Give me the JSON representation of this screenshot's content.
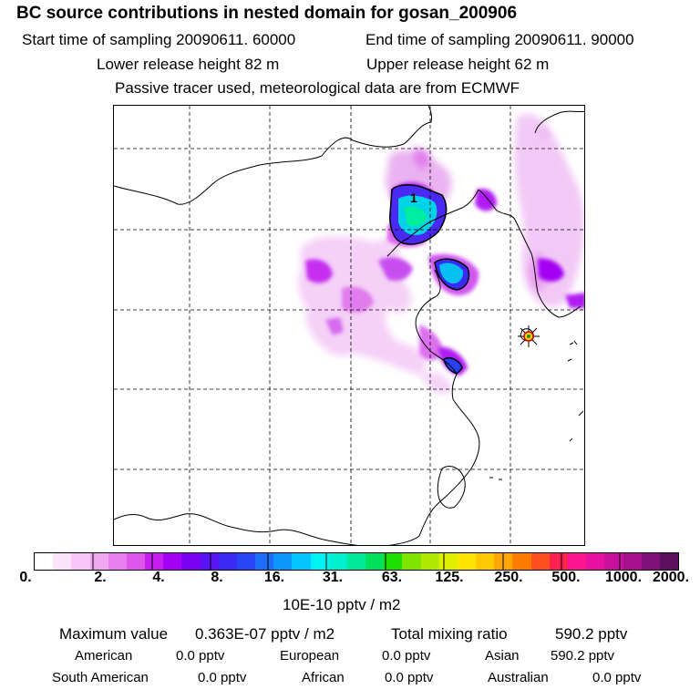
{
  "header": {
    "title": "BC  source contributions in nested domain for gosan_200906",
    "start_time": "Start time of sampling 20090611. 60000",
    "end_time": "End time of sampling 20090611. 90000",
    "lower_height": "Lower release height   82 m",
    "upper_height": "Upper release height   62 m",
    "tracer_note": "Passive tracer used, meteorological data are from ECMWF"
  },
  "map": {
    "contour_label": "1",
    "station_marker": "receptor-star-icon"
  },
  "colorbar": {
    "colors": [
      "#ffffff",
      "#fbe3fb",
      "#f5c6f6",
      "#efa8f1",
      "#e97eee",
      "#de55ec",
      "#c61ef1",
      "#a400f4",
      "#7c00f6",
      "#5a14f4",
      "#3d2af2",
      "#2846f5",
      "#1c6ef8",
      "#0f96fa",
      "#03c4fc",
      "#00f2f5",
      "#00f0d0",
      "#00ea9c",
      "#00e05a",
      "#20e000",
      "#80e400",
      "#b0e800",
      "#e0ee00",
      "#ffe400",
      "#ffc800",
      "#ffa600",
      "#ff7c00",
      "#ff5020",
      "#ff2050",
      "#ff1490",
      "#e8109e",
      "#c8109e",
      "#a8108e",
      "#80107a",
      "#5a105e"
    ],
    "tick_labels": [
      "0.",
      "2.",
      "4.",
      "8.",
      "16.",
      "31.",
      "63.",
      "125.",
      "250.",
      "500.",
      "1000.",
      "2000."
    ],
    "units": "10E-10 pptv / m2"
  },
  "summary": {
    "max_label": "Maximum value",
    "max_value": "0.363E-07 pptv / m2",
    "total_label": "Total mixing ratio",
    "total_value": "590.2 pptv"
  },
  "regions": [
    {
      "name": "American",
      "value": "0.0 pptv"
    },
    {
      "name": "European",
      "value": "0.0 pptv"
    },
    {
      "name": "Asian",
      "value": "590.2 pptv"
    },
    {
      "name": "South American",
      "value": "0.0 pptv"
    },
    {
      "name": "African",
      "value": "0.0 pptv"
    },
    {
      "name": "Australian",
      "value": "0.0 pptv"
    }
  ]
}
